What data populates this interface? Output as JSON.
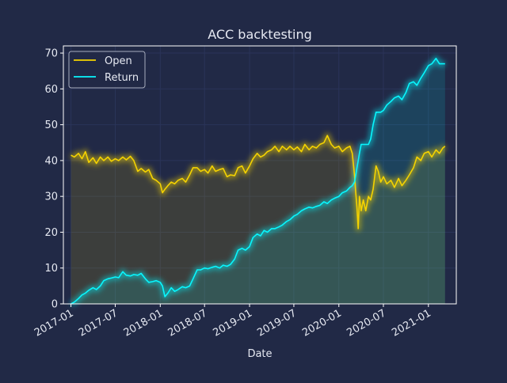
{
  "theme": {
    "background": "#212946",
    "axes_edge": "#ffffff",
    "grid": "#2A3459",
    "text": "#e6e9f2",
    "open_color": "#F5D300",
    "return_color": "#08F7FE"
  },
  "chart_data": {
    "type": "line",
    "title": "ACC backtesting",
    "xlabel": "Date",
    "ylabel": "",
    "x_type": "date",
    "xlim": [
      "2016-12-01",
      "2021-04-25"
    ],
    "ylim": [
      0,
      72
    ],
    "x_ticks": [
      "2017-01",
      "2017-07",
      "2018-01",
      "2018-07",
      "2019-01",
      "2019-07",
      "2020-01",
      "2020-07",
      "2021-01"
    ],
    "y_ticks": [
      0,
      10,
      20,
      30,
      40,
      50,
      60,
      70
    ],
    "grid": true,
    "legend_position": "top-left",
    "area_fill": true,
    "glow": true,
    "series": [
      {
        "name": "Open",
        "color": "#F5D300",
        "points": [
          [
            "2017-01-01",
            41.5
          ],
          [
            "2017-01-15",
            41.0
          ],
          [
            "2017-02-01",
            42.0
          ],
          [
            "2017-02-15",
            40.5
          ],
          [
            "2017-03-01",
            42.5
          ],
          [
            "2017-03-15",
            39.5
          ],
          [
            "2017-04-01",
            40.8
          ],
          [
            "2017-04-15",
            39.2
          ],
          [
            "2017-05-01",
            41.0
          ],
          [
            "2017-05-15",
            40.0
          ],
          [
            "2017-06-01",
            41.0
          ],
          [
            "2017-06-15",
            39.8
          ],
          [
            "2017-07-01",
            40.5
          ],
          [
            "2017-07-15",
            40.0
          ],
          [
            "2017-08-01",
            41.0
          ],
          [
            "2017-08-15",
            40.2
          ],
          [
            "2017-09-01",
            41.2
          ],
          [
            "2017-09-15",
            40.0
          ],
          [
            "2017-10-01",
            37.0
          ],
          [
            "2017-10-15",
            37.8
          ],
          [
            "2017-11-01",
            36.8
          ],
          [
            "2017-11-15",
            37.5
          ],
          [
            "2017-12-01",
            35.0
          ],
          [
            "2017-12-15",
            34.5
          ],
          [
            "2018-01-01",
            33.5
          ],
          [
            "2018-01-10",
            31.0
          ],
          [
            "2018-01-20",
            32.0
          ],
          [
            "2018-02-01",
            33.0
          ],
          [
            "2018-02-15",
            34.0
          ],
          [
            "2018-03-01",
            33.5
          ],
          [
            "2018-03-15",
            34.5
          ],
          [
            "2018-04-01",
            35.0
          ],
          [
            "2018-04-15",
            34.0
          ],
          [
            "2018-05-01",
            36.0
          ],
          [
            "2018-05-15",
            38.0
          ],
          [
            "2018-06-01",
            38.0
          ],
          [
            "2018-06-15",
            37.0
          ],
          [
            "2018-07-01",
            37.5
          ],
          [
            "2018-07-15",
            36.5
          ],
          [
            "2018-08-01",
            38.5
          ],
          [
            "2018-08-15",
            37.0
          ],
          [
            "2018-09-01",
            37.5
          ],
          [
            "2018-09-15",
            37.8
          ],
          [
            "2018-10-01",
            35.5
          ],
          [
            "2018-10-15",
            36.0
          ],
          [
            "2018-11-01",
            35.8
          ],
          [
            "2018-11-15",
            38.0
          ],
          [
            "2018-12-01",
            38.5
          ],
          [
            "2018-12-15",
            36.5
          ],
          [
            "2019-01-01",
            38.5
          ],
          [
            "2019-01-15",
            40.5
          ],
          [
            "2019-02-01",
            42.0
          ],
          [
            "2019-02-15",
            41.0
          ],
          [
            "2019-03-01",
            41.5
          ],
          [
            "2019-03-15",
            42.5
          ],
          [
            "2019-04-01",
            43.0
          ],
          [
            "2019-04-15",
            44.0
          ],
          [
            "2019-05-01",
            42.5
          ],
          [
            "2019-05-15",
            44.0
          ],
          [
            "2019-06-01",
            43.0
          ],
          [
            "2019-06-15",
            44.0
          ],
          [
            "2019-07-01",
            43.0
          ],
          [
            "2019-07-15",
            43.8
          ],
          [
            "2019-08-01",
            42.5
          ],
          [
            "2019-08-15",
            44.5
          ],
          [
            "2019-09-01",
            43.0
          ],
          [
            "2019-09-15",
            44.0
          ],
          [
            "2019-10-01",
            43.5
          ],
          [
            "2019-10-15",
            44.5
          ],
          [
            "2019-11-01",
            45.0
          ],
          [
            "2019-11-15",
            47.0
          ],
          [
            "2019-12-01",
            44.5
          ],
          [
            "2019-12-15",
            43.5
          ],
          [
            "2020-01-01",
            44.0
          ],
          [
            "2020-01-15",
            42.5
          ],
          [
            "2020-02-01",
            43.5
          ],
          [
            "2020-02-15",
            44.0
          ],
          [
            "2020-02-25",
            42.0
          ],
          [
            "2020-03-05",
            36.0
          ],
          [
            "2020-03-10",
            31.0
          ],
          [
            "2020-03-15",
            27.0
          ],
          [
            "2020-03-20",
            21.0
          ],
          [
            "2020-03-25",
            30.0
          ],
          [
            "2020-04-01",
            26.0
          ],
          [
            "2020-04-10",
            29.0
          ],
          [
            "2020-04-20",
            26.0
          ],
          [
            "2020-05-01",
            30.0
          ],
          [
            "2020-05-10",
            29.0
          ],
          [
            "2020-05-20",
            32.0
          ],
          [
            "2020-06-01",
            38.5
          ],
          [
            "2020-06-10",
            37.0
          ],
          [
            "2020-06-20",
            34.0
          ],
          [
            "2020-07-01",
            35.5
          ],
          [
            "2020-07-15",
            33.5
          ],
          [
            "2020-08-01",
            34.5
          ],
          [
            "2020-08-15",
            32.5
          ],
          [
            "2020-09-01",
            35.0
          ],
          [
            "2020-09-15",
            33.0
          ],
          [
            "2020-10-01",
            34.5
          ],
          [
            "2020-10-15",
            36.0
          ],
          [
            "2020-11-01",
            38.0
          ],
          [
            "2020-11-15",
            41.0
          ],
          [
            "2020-12-01",
            40.0
          ],
          [
            "2020-12-15",
            42.0
          ],
          [
            "2021-01-01",
            42.5
          ],
          [
            "2021-01-15",
            41.0
          ],
          [
            "2021-02-01",
            43.0
          ],
          [
            "2021-02-15",
            42.0
          ],
          [
            "2021-03-01",
            43.5
          ],
          [
            "2021-03-10",
            44.0
          ]
        ]
      },
      {
        "name": "Return",
        "color": "#08F7FE",
        "points": [
          [
            "2017-01-01",
            0.0
          ],
          [
            "2017-01-15",
            0.5
          ],
          [
            "2017-02-01",
            1.5
          ],
          [
            "2017-02-15",
            2.5
          ],
          [
            "2017-03-01",
            3.0
          ],
          [
            "2017-03-15",
            3.8
          ],
          [
            "2017-04-01",
            4.5
          ],
          [
            "2017-04-15",
            4.0
          ],
          [
            "2017-05-01",
            5.0
          ],
          [
            "2017-05-15",
            6.5
          ],
          [
            "2017-06-01",
            7.0
          ],
          [
            "2017-06-15",
            7.2
          ],
          [
            "2017-07-01",
            7.5
          ],
          [
            "2017-07-15",
            7.3
          ],
          [
            "2017-08-01",
            9.0
          ],
          [
            "2017-08-15",
            8.0
          ],
          [
            "2017-09-01",
            7.8
          ],
          [
            "2017-09-15",
            8.2
          ],
          [
            "2017-10-01",
            8.0
          ],
          [
            "2017-10-15",
            8.5
          ],
          [
            "2017-11-01",
            7.0
          ],
          [
            "2017-11-15",
            6.0
          ],
          [
            "2017-12-01",
            6.2
          ],
          [
            "2017-12-15",
            6.5
          ],
          [
            "2018-01-01",
            6.0
          ],
          [
            "2018-01-10",
            5.0
          ],
          [
            "2018-01-20",
            2.0
          ],
          [
            "2018-02-01",
            3.0
          ],
          [
            "2018-02-15",
            4.5
          ],
          [
            "2018-03-01",
            3.5
          ],
          [
            "2018-03-15",
            4.0
          ],
          [
            "2018-04-01",
            4.8
          ],
          [
            "2018-04-15",
            4.5
          ],
          [
            "2018-05-01",
            5.0
          ],
          [
            "2018-05-15",
            7.0
          ],
          [
            "2018-06-01",
            9.5
          ],
          [
            "2018-06-15",
            9.5
          ],
          [
            "2018-07-01",
            10.0
          ],
          [
            "2018-07-15",
            9.8
          ],
          [
            "2018-08-01",
            10.2
          ],
          [
            "2018-08-15",
            10.5
          ],
          [
            "2018-09-01",
            10.0
          ],
          [
            "2018-09-15",
            10.8
          ],
          [
            "2018-10-01",
            10.5
          ],
          [
            "2018-10-15",
            11.0
          ],
          [
            "2018-11-01",
            12.5
          ],
          [
            "2018-11-15",
            15.0
          ],
          [
            "2018-12-01",
            15.5
          ],
          [
            "2018-12-15",
            15.0
          ],
          [
            "2019-01-01",
            16.0
          ],
          [
            "2019-01-15",
            18.5
          ],
          [
            "2019-02-01",
            19.5
          ],
          [
            "2019-02-15",
            19.0
          ],
          [
            "2019-03-01",
            20.5
          ],
          [
            "2019-03-15",
            20.0
          ],
          [
            "2019-04-01",
            21.0
          ],
          [
            "2019-04-15",
            21.0
          ],
          [
            "2019-05-01",
            21.5
          ],
          [
            "2019-05-15",
            22.0
          ],
          [
            "2019-06-01",
            23.0
          ],
          [
            "2019-06-15",
            23.5
          ],
          [
            "2019-07-01",
            24.5
          ],
          [
            "2019-07-15",
            25.0
          ],
          [
            "2019-08-01",
            26.0
          ],
          [
            "2019-08-15",
            26.5
          ],
          [
            "2019-09-01",
            27.0
          ],
          [
            "2019-09-15",
            26.8
          ],
          [
            "2019-10-01",
            27.2
          ],
          [
            "2019-10-15",
            27.5
          ],
          [
            "2019-11-01",
            28.5
          ],
          [
            "2019-11-15",
            28.0
          ],
          [
            "2019-12-01",
            29.0
          ],
          [
            "2019-12-15",
            29.5
          ],
          [
            "2020-01-01",
            30.0
          ],
          [
            "2020-01-15",
            31.0
          ],
          [
            "2020-02-01",
            31.5
          ],
          [
            "2020-02-15",
            32.5
          ],
          [
            "2020-02-25",
            33.0
          ],
          [
            "2020-03-05",
            34.0
          ],
          [
            "2020-03-10",
            36.0
          ],
          [
            "2020-03-15",
            38.0
          ],
          [
            "2020-03-20",
            40.0
          ],
          [
            "2020-03-25",
            42.0
          ],
          [
            "2020-04-01",
            44.5
          ],
          [
            "2020-04-10",
            44.5
          ],
          [
            "2020-04-20",
            44.5
          ],
          [
            "2020-05-01",
            44.5
          ],
          [
            "2020-05-10",
            46.0
          ],
          [
            "2020-05-20",
            50.0
          ],
          [
            "2020-06-01",
            53.5
          ],
          [
            "2020-06-10",
            53.5
          ],
          [
            "2020-06-20",
            53.5
          ],
          [
            "2020-07-01",
            54.0
          ],
          [
            "2020-07-15",
            55.5
          ],
          [
            "2020-08-01",
            56.5
          ],
          [
            "2020-08-15",
            57.5
          ],
          [
            "2020-09-01",
            58.0
          ],
          [
            "2020-09-15",
            57.0
          ],
          [
            "2020-10-01",
            59.0
          ],
          [
            "2020-10-15",
            61.5
          ],
          [
            "2020-11-01",
            62.0
          ],
          [
            "2020-11-15",
            61.0
          ],
          [
            "2020-12-01",
            63.0
          ],
          [
            "2020-12-15",
            64.5
          ],
          [
            "2021-01-01",
            66.5
          ],
          [
            "2021-01-15",
            67.0
          ],
          [
            "2021-02-01",
            68.5
          ],
          [
            "2021-02-15",
            67.0
          ],
          [
            "2021-03-01",
            67.0
          ],
          [
            "2021-03-10",
            67.0
          ]
        ]
      }
    ]
  }
}
